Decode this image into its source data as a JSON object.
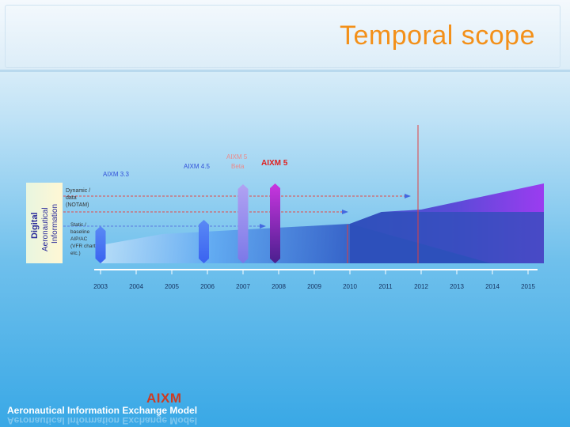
{
  "title": "Temporal scope",
  "side_label": {
    "line1": "Digital",
    "line2": "Aeronautical",
    "line3": "Information"
  },
  "categories": {
    "dynamic": [
      "Dynamic /",
      "data",
      "(NOTAM)"
    ],
    "static": [
      "Static /",
      "baseline",
      "AIP/AC",
      "(VFR charts,",
      "etc.)"
    ]
  },
  "versions": [
    {
      "label": "AIXM 3.3",
      "year": 2003,
      "color": "#3a62f0",
      "top_color": "#5a8af5"
    },
    {
      "label": "AIXM 4.5",
      "year": 2005.9,
      "color": "#3a62f0",
      "top_color": "#5a8af5"
    },
    {
      "label": "AIXM 5",
      "year": 2007,
      "color": "#7b78e8",
      "top_color": "#b1a2f2"
    },
    {
      "label": "AIXM 5",
      "year": 2007.9,
      "color": "#4a1f8e",
      "top_color": "#c936e0"
    }
  ],
  "version_beta_label": "Beta",
  "years": [
    "2003",
    "2004",
    "2005",
    "2006",
    "2007",
    "2008",
    "2009",
    "2010",
    "2011",
    "2012",
    "2013",
    "2014",
    "2015"
  ],
  "footer": {
    "logo": "AIXM",
    "name": "Aeronautical Information Exchange Model"
  },
  "colors": {
    "accent": "#f39019",
    "aixm5_label": "#e02020",
    "version_label": "#3050d8",
    "dynamic_band": "#8a3be6",
    "static_band": "#2e4fb8",
    "axis": "#ffffff"
  }
}
